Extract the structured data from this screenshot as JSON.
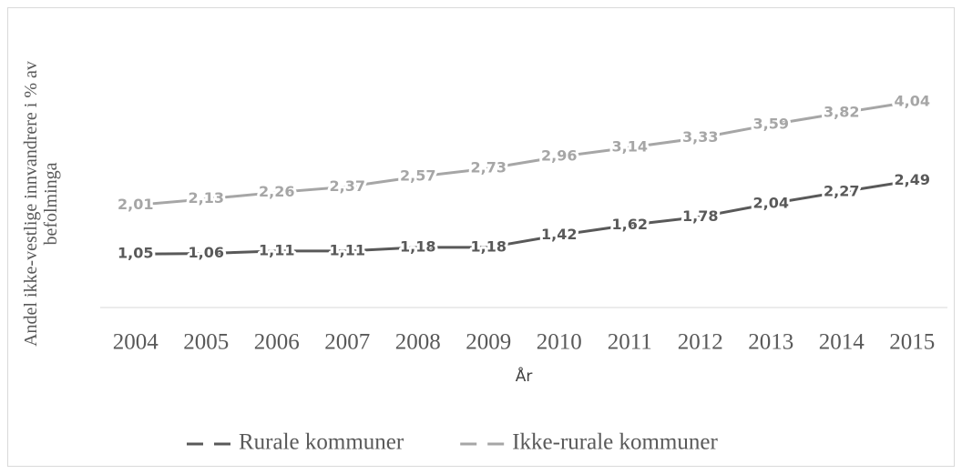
{
  "chart_data": {
    "type": "line",
    "x_label": "År",
    "y_label": "Andel ikke-vestlige innvandrere i % av befolminga",
    "categories": [
      "2004",
      "2005",
      "2006",
      "2007",
      "2008",
      "2009",
      "2010",
      "2011",
      "2012",
      "2013",
      "2014",
      "2015"
    ],
    "series": [
      {
        "name": "Rurale kommuner",
        "color": "#595959",
        "values": [
          1.05,
          1.06,
          1.11,
          1.11,
          1.18,
          1.18,
          1.42,
          1.62,
          1.78,
          2.04,
          2.27,
          2.49
        ],
        "value_labels": [
          "1,05",
          "1,06",
          "1,11",
          "1,11",
          "1,18",
          "1,18",
          "1,42",
          "1,62",
          "1,78",
          "2,04",
          "2,27",
          "2,49"
        ]
      },
      {
        "name": "Ikke-rurale kommuner",
        "color": "#a6a6a6",
        "values": [
          2.01,
          2.13,
          2.26,
          2.37,
          2.57,
          2.73,
          2.96,
          3.14,
          3.33,
          3.59,
          3.82,
          4.04
        ],
        "value_labels": [
          "2,01",
          "2,13",
          "2,26",
          "2,37",
          "2,57",
          "2,73",
          "2,96",
          "3,14",
          "3,33",
          "3,59",
          "3,82",
          "4,04"
        ]
      }
    ],
    "ylim": [
      0,
      5
    ],
    "legend": "bottom"
  }
}
